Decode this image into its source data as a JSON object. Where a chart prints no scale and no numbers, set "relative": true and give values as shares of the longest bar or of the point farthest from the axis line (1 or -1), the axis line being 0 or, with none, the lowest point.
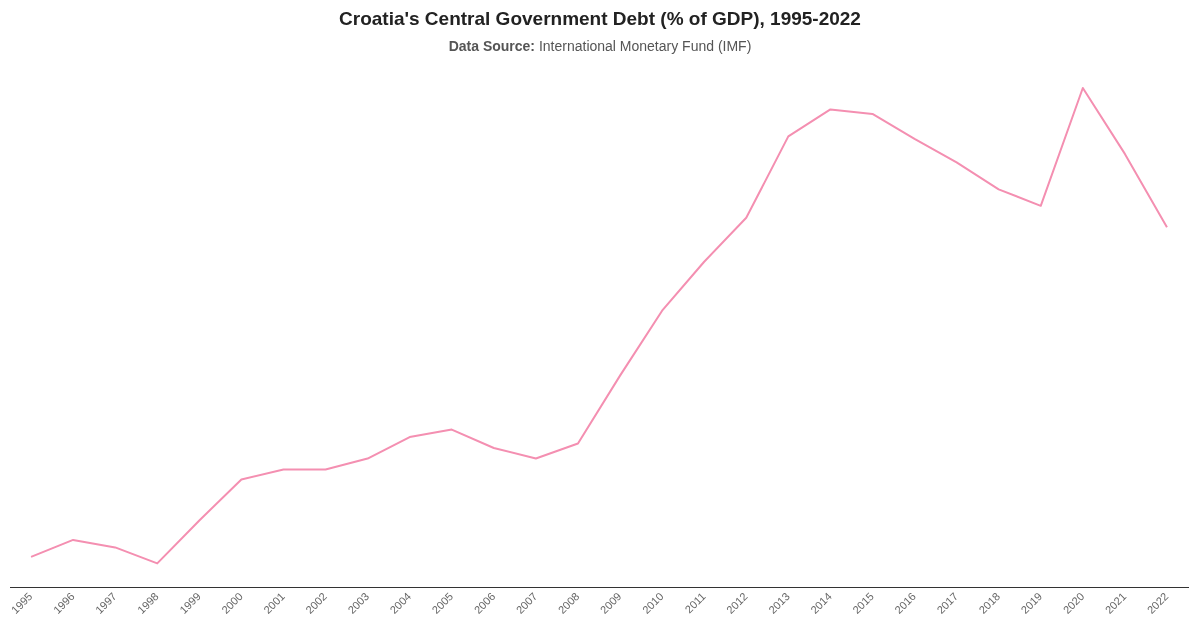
{
  "chart_data": {
    "type": "line",
    "title": "Croatia's Central Government Debt (% of GDP), 1995-2022",
    "subtitle": "Data Source: International Monetary Fund (IMF)",
    "relative": true,
    "categories": [
      "1995",
      "1996",
      "1997",
      "1998",
      "1999",
      "2000",
      "2001",
      "2002",
      "2003",
      "2004",
      "2005",
      "2006",
      "2007",
      "2008",
      "2009",
      "2010",
      "2011",
      "2012",
      "2013",
      "2014",
      "2015",
      "2016",
      "2017",
      "2018",
      "2019",
      "2020",
      "2021",
      "2022"
    ],
    "series": [
      {
        "color": "#f48fb1",
        "values": [
          0.061,
          0.095,
          0.08,
          0.048,
          0.134,
          0.216,
          0.236,
          0.236,
          0.258,
          0.301,
          0.316,
          0.279,
          0.258,
          0.288,
          0.424,
          0.554,
          0.652,
          0.74,
          0.903,
          0.957,
          0.948,
          0.898,
          0.851,
          0.797,
          0.764,
          1,
          0.868,
          0.721
        ]
      }
    ],
    "grid": false,
    "legend": false,
    "marker": "none",
    "line_style": "solid"
  }
}
